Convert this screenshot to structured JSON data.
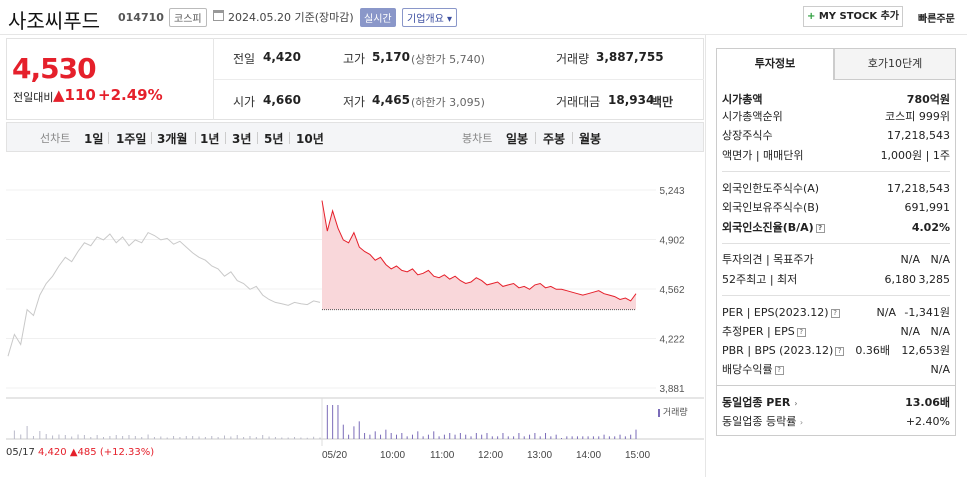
{
  "header": {
    "title": "사조씨푸드",
    "code": "014710",
    "market": "코스피",
    "date": "2024.05.20 기준(장마감)",
    "realtime": "실시간",
    "company_info": "기업개요",
    "mystock": "MY STOCK 추가",
    "quick_order": "빠른주문"
  },
  "price": {
    "current": "4,530",
    "change_label": "전일대비",
    "change": "110",
    "change_pct": "+2.49%",
    "prev_close_label": "전일",
    "prev_close": "4,420",
    "high_label": "고가",
    "high": "5,170",
    "upper_limit": "(상한가 5,740)",
    "volume_label": "거래량",
    "volume": "3,887,755",
    "open_label": "시가",
    "open": "4,660",
    "low_label": "저가",
    "low": "4,465",
    "lower_limit": "(하한가 3,095)",
    "amount_label": "거래대금",
    "amount": "18,934",
    "amount_unit": "백만"
  },
  "periods": {
    "line_label": "선차트",
    "line_items": [
      "1일",
      "1주일",
      "3개월",
      "1년",
      "3년",
      "5년",
      "10년"
    ],
    "active": "1일",
    "candle_label": "봉차트",
    "candle_items": [
      "일봉",
      "주봉",
      "월봉"
    ]
  },
  "chart_data": {
    "type": "line",
    "y_ticks": [
      "5,243",
      "4,902",
      "4,562",
      "4,222",
      "3,881"
    ],
    "ylim": [
      3881,
      5243
    ],
    "x_ticks": [
      "05/17",
      "05/20",
      "10:00",
      "11:00",
      "12:00",
      "13:00",
      "14:00",
      "15:00"
    ],
    "prev_close_line": 4420,
    "volume_label": "거래량",
    "prev_day_label": "05/17",
    "prev_day_close": "4,420",
    "prev_day_change": "485",
    "prev_day_pct": "(+12.33%)",
    "prev_day_series": [
      4100,
      4250,
      4180,
      4420,
      4380,
      4520,
      4600,
      4650,
      4720,
      4780,
      4750,
      4820,
      4880,
      4860,
      4920,
      4900,
      4940,
      4880,
      4920,
      4860,
      4900,
      4880,
      4950,
      4930,
      4900,
      4910,
      4870,
      4890,
      4850,
      4810,
      4780,
      4760,
      4720,
      4700,
      4650,
      4680,
      4620,
      4600,
      4560,
      4580,
      4520,
      4490,
      4470,
      4460,
      4450,
      4470,
      4460,
      4455,
      4480,
      4470
    ],
    "today_series": [
      5170,
      4960,
      5100,
      4980,
      4900,
      4880,
      4950,
      4850,
      4820,
      4800,
      4760,
      4780,
      4730,
      4700,
      4720,
      4690,
      4680,
      4700,
      4660,
      4670,
      4690,
      4650,
      4640,
      4660,
      4630,
      4650,
      4620,
      4600,
      4610,
      4640,
      4620,
      4590,
      4600,
      4610,
      4580,
      4590,
      4600,
      4570,
      4580,
      4560,
      4590,
      4600,
      4570,
      4580,
      4560,
      4560,
      4550,
      4540,
      4530,
      4520,
      4530,
      4540,
      4550,
      4530,
      4520,
      4510,
      4490,
      4500,
      4480,
      4530
    ]
  },
  "tabs": {
    "invest": "투자정보",
    "hoga": "호가10단계"
  },
  "invest_info": {
    "market_cap_label": "시가총액",
    "market_cap": "780억원",
    "rank_label": "시가총액순위",
    "rank": "코스피 999위",
    "shares_label": "상장주식수",
    "shares": "17,218,543",
    "par_label": "액면가 | 매매단위",
    "par": "1,000원 | 1주",
    "foreign_limit_label": "외국인한도주식수(A)",
    "foreign_limit": "17,218,543",
    "foreign_hold_label": "외국인보유주식수(B)",
    "foreign_hold": "691,991",
    "foreign_ratio_label": "외국인소진율(B/A)",
    "foreign_ratio": "4.02%",
    "opinion_label": "투자의견 | 목표주가",
    "opinion": "N/A",
    "target": "N/A",
    "week52_label": "52주최고 | 최저",
    "week52_high": "6,180",
    "week52_low": "3,285",
    "per_label": "PER | EPS(2023.12)",
    "per": "N/A",
    "eps": "-1,341원",
    "est_per_label": "추정PER | EPS",
    "est_per": "N/A",
    "est_eps": "N/A",
    "pbr_label": "PBR | BPS (2023.12)",
    "pbr": "0.36배",
    "bps": "12,653원",
    "dividend_label": "배당수익률",
    "dividend": "N/A",
    "industry_per_label": "동일업종 PER",
    "industry_per": "13.06배",
    "industry_rate_label": "동일업종 등락률",
    "industry_rate": "+2.40%"
  }
}
